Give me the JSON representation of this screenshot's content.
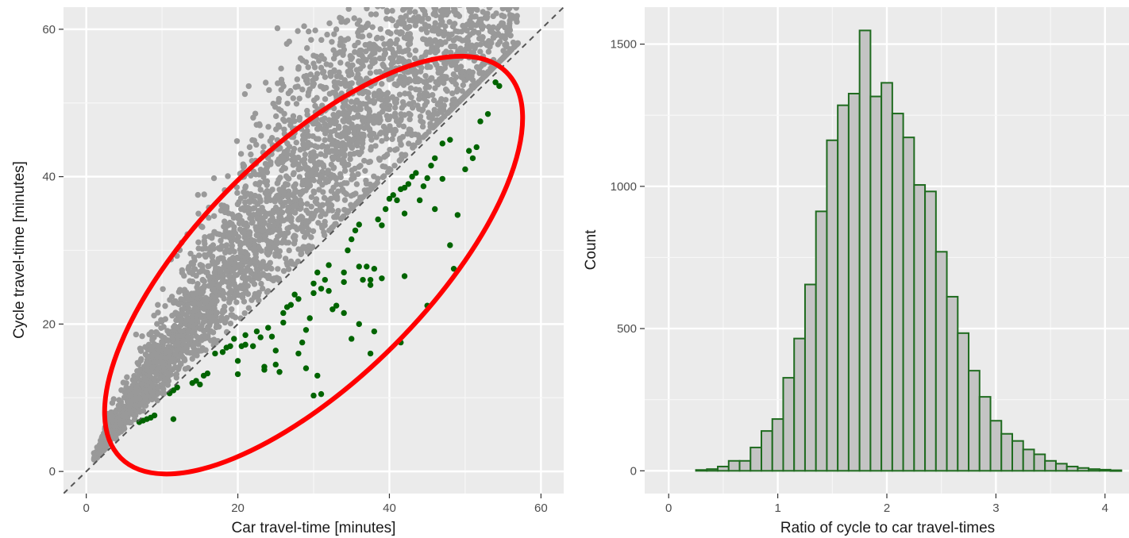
{
  "chart_data": [
    {
      "type": "scatter",
      "xlabel": "Car travel-time [minutes]",
      "ylabel": "Cycle travel-time [minutes]",
      "xlim": [
        -3,
        63
      ],
      "ylim": [
        -3,
        63
      ],
      "x_ticks": [
        0,
        20,
        40,
        60
      ],
      "y_ticks": [
        0,
        20,
        40,
        60
      ],
      "grid": true,
      "reference_line": {
        "style": "dashed",
        "slope": 1,
        "intercept": 0,
        "color": "#555555"
      },
      "colors": {
        "faster_by_car": "#999999",
        "faster_by_cycle": "#006400",
        "highlight_ellipse": "#ff0000"
      },
      "highlight_ellipse": {
        "center": [
          30,
          28
        ],
        "semi_axes": [
          36,
          15
        ],
        "rotation_deg": 45
      },
      "series": [
        {
          "values_green": [
            [
              7,
              6.7
            ],
            [
              7.5,
              6.9
            ],
            [
              8,
              7.1
            ],
            [
              8.5,
              7.3
            ],
            [
              9,
              7.6
            ],
            [
              11.5,
              7.1
            ],
            [
              11,
              10.6
            ],
            [
              11.5,
              11
            ],
            [
              12,
              11.4
            ],
            [
              14,
              12
            ],
            [
              14.5,
              12.3
            ],
            [
              15,
              11.8
            ],
            [
              15.5,
              13
            ],
            [
              16,
              13.3
            ],
            [
              17,
              16
            ],
            [
              18,
              16.2
            ],
            [
              18.5,
              16.8
            ],
            [
              19,
              17
            ],
            [
              19.5,
              18
            ],
            [
              20,
              13.2
            ],
            [
              20,
              15
            ],
            [
              20.5,
              17
            ],
            [
              21,
              18.5
            ],
            [
              21,
              17.2
            ],
            [
              22,
              17
            ],
            [
              22.5,
              19
            ],
            [
              23,
              18.2
            ],
            [
              23.5,
              13.8
            ],
            [
              23.5,
              14.2
            ],
            [
              24,
              19.5
            ],
            [
              24.5,
              18.3
            ],
            [
              25,
              16.4
            ],
            [
              25,
              14.5
            ],
            [
              25.5,
              13.5
            ],
            [
              26,
              20.2
            ],
            [
              26,
              21.5
            ],
            [
              26.5,
              22.3
            ],
            [
              27,
              22.6
            ],
            [
              27.5,
              24
            ],
            [
              28,
              23.4
            ],
            [
              28.5,
              17.5
            ],
            [
              29,
              19.2
            ],
            [
              29.5,
              20.8
            ],
            [
              30,
              24.2
            ],
            [
              30,
              25.5
            ],
            [
              30.5,
              27
            ],
            [
              31,
              24.8
            ],
            [
              31.5,
              26
            ],
            [
              32,
              24.5
            ],
            [
              32,
              28
            ],
            [
              32.5,
              22
            ],
            [
              33,
              22.5
            ],
            [
              34,
              27
            ],
            [
              34,
              25.7
            ],
            [
              34.5,
              30
            ],
            [
              35,
              31.5
            ],
            [
              35.5,
              32.7
            ],
            [
              36,
              27.8
            ],
            [
              36,
              33.5
            ],
            [
              36.5,
              26
            ],
            [
              37,
              27.8
            ],
            [
              37.5,
              26
            ],
            [
              37.5,
              25.3
            ],
            [
              38,
              27.5
            ],
            [
              38.5,
              34.2
            ],
            [
              39,
              33.4
            ],
            [
              39,
              26.2
            ],
            [
              39.5,
              35.6
            ],
            [
              40,
              37
            ],
            [
              40.5,
              37.5
            ],
            [
              41,
              36.8
            ],
            [
              41.5,
              38.3
            ],
            [
              42,
              38.5
            ],
            [
              42.5,
              39
            ],
            [
              42,
              35
            ],
            [
              43,
              40
            ],
            [
              43.5,
              40.5
            ],
            [
              44,
              36.8
            ],
            [
              44.5,
              38.7
            ],
            [
              45,
              39.8
            ],
            [
              45.5,
              41.5
            ],
            [
              46,
              42.5
            ],
            [
              46,
              35.6
            ],
            [
              47,
              39.7
            ],
            [
              48,
              45
            ],
            [
              48,
              30.7
            ],
            [
              49,
              34.8
            ],
            [
              50,
              41
            ],
            [
              50.5,
              43.5
            ],
            [
              51,
              42.5
            ],
            [
              51.5,
              44
            ],
            [
              47,
              44.5
            ],
            [
              52,
              47.5
            ],
            [
              53,
              48.5
            ],
            [
              54,
              52.8
            ],
            [
              54.5,
              52.3
            ],
            [
              45,
              22.5
            ],
            [
              41.5,
              17.5
            ],
            [
              37.5,
              16
            ],
            [
              38,
              19
            ],
            [
              35,
              18
            ],
            [
              31,
              10.5
            ],
            [
              30,
              10.3
            ],
            [
              29,
              14
            ],
            [
              30.5,
              13
            ],
            [
              36,
              20
            ],
            [
              28,
              16
            ],
            [
              34,
              21.5
            ],
            [
              42,
              26.5
            ],
            [
              48.5,
              27.5
            ]
          ]
        }
      ]
    },
    {
      "type": "bar",
      "xlabel": "Ratio of cycle to car travel-times",
      "ylabel": "Count",
      "xlim": [
        -0.22,
        4.22
      ],
      "ylim": [
        -80,
        1630
      ],
      "x_ticks": [
        0,
        1,
        2,
        3,
        4
      ],
      "y_ticks": [
        0,
        500,
        1000,
        1500
      ],
      "grid": true,
      "bin_width": 0.1,
      "colors": {
        "bar_fill": "#c4c4c4",
        "bar_outline": "#1f6b1f"
      },
      "categories": [
        0.3,
        0.4,
        0.5,
        0.6,
        0.7,
        0.8,
        0.9,
        1.0,
        1.1,
        1.2,
        1.3,
        1.4,
        1.5,
        1.6,
        1.7,
        1.8,
        1.9,
        2.0,
        2.1,
        2.2,
        2.3,
        2.4,
        2.5,
        2.6,
        2.7,
        2.8,
        2.9,
        3.0,
        3.1,
        3.2,
        3.3,
        3.4,
        3.5,
        3.6,
        3.7,
        3.8,
        3.9,
        4.0,
        4.1
      ],
      "values": [
        3,
        6,
        15,
        35,
        35,
        82,
        140,
        182,
        327,
        465,
        655,
        912,
        1162,
        1285,
        1326,
        1548,
        1316,
        1364,
        1256,
        1172,
        1005,
        982,
        770,
        612,
        484,
        352,
        260,
        176,
        130,
        105,
        75,
        58,
        35,
        25,
        15,
        10,
        6,
        4,
        2
      ]
    }
  ]
}
